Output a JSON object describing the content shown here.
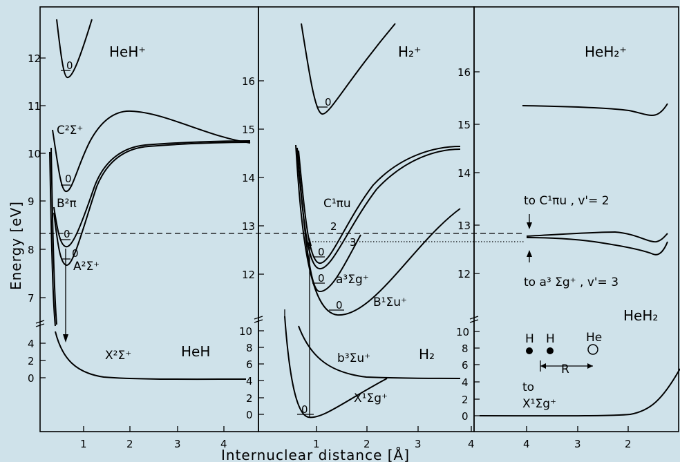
{
  "axis": {
    "ylabel": "Energy [eV]",
    "xlabel": "Internuclear distance [Å]"
  },
  "panel_heh": {
    "title_upper": "HeH⁺",
    "title_lower": "HeH",
    "upper_ticks": [
      "12",
      "11",
      "10",
      "9",
      "8",
      "7"
    ],
    "lower_ticks": [
      "4",
      "2",
      "0"
    ],
    "x_ticks": [
      "1",
      "2",
      "3",
      "4"
    ],
    "labels": {
      "c": "C²Σ⁺",
      "b": "B²π",
      "a": "A²Σ⁺",
      "x": "X²Σ⁺",
      "v0": "0"
    }
  },
  "panel_h2": {
    "title_upper": "H₂⁺",
    "title_lower": "H₂",
    "upper_ticks": [
      "16",
      "15",
      "14",
      "13",
      "12"
    ],
    "lower_ticks": [
      "10",
      "8",
      "6",
      "4",
      "2",
      "0"
    ],
    "x_ticks": [
      "1",
      "2",
      "3",
      "4"
    ],
    "labels": {
      "c": "C¹πu",
      "a": "a³Σg⁺",
      "b_upper": "B¹Σu⁺",
      "b_lower": "b³Σu⁺",
      "x": "X¹Σg⁺",
      "v0": "0",
      "v2": "2",
      "v3": "3"
    }
  },
  "panel_heh2": {
    "title_upper": "HeH₂⁺",
    "title_lower": "HeH₂",
    "upper_ticks": [
      "16",
      "15",
      "14",
      "13",
      "12"
    ],
    "lower_ticks": [
      "10",
      "8",
      "6",
      "4",
      "2",
      "0"
    ],
    "x_ticks": [
      "4",
      "3",
      "2"
    ],
    "labels": {
      "to_c": "to C¹πu , v'= 2",
      "to_a": "to a³ Σg⁺ , v'= 3",
      "to_x1": "to",
      "to_x2": "X¹Σg⁺",
      "atom_h1": "H",
      "atom_h2": "H",
      "atom_he": "He",
      "r": "R"
    }
  }
}
